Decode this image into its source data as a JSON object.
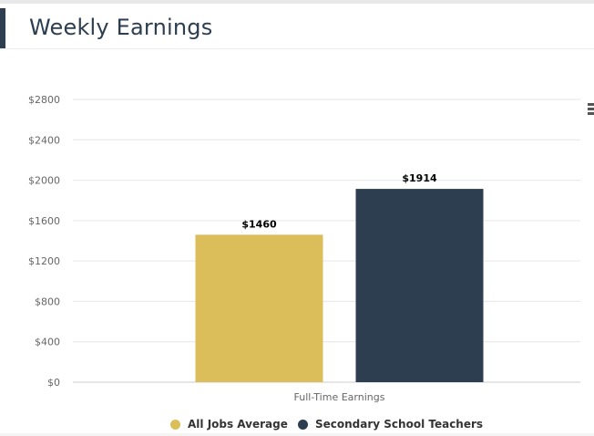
{
  "header": {
    "title": "Weekly Earnings"
  },
  "chart_data": {
    "type": "bar",
    "title": "Weekly Earnings",
    "categories": [
      "Full-Time Earnings"
    ],
    "series": [
      {
        "name": "All Jobs Average",
        "values": [
          1460
        ],
        "color": "#dbbe5a",
        "data_label": "$1460"
      },
      {
        "name": "Secondary School Teachers",
        "values": [
          1914
        ],
        "color": "#2c3e50",
        "data_label": "$1914"
      }
    ],
    "ylim": [
      0,
      2800
    ],
    "yticks": [
      0,
      400,
      800,
      1200,
      1600,
      2000,
      2400,
      2800
    ],
    "ytick_labels": [
      "$0",
      "$400",
      "$800",
      "$1200",
      "$1600",
      "$2000",
      "$2400",
      "$2800"
    ],
    "xlabel": "",
    "ylabel": "",
    "grid": true,
    "legend": "bottom"
  },
  "menu": {
    "icon": "hamburger-menu-icon"
  }
}
